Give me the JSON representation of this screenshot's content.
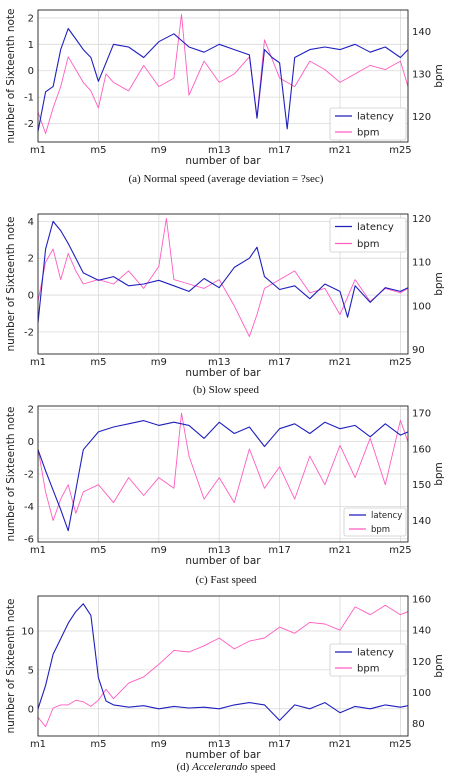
{
  "colors": {
    "latency": "#1f1fbf",
    "bpm": "#ff5cc0"
  },
  "chart_data": [
    {
      "type": "line",
      "caption": "(a)  Normal speed (average deviation = ?sec)",
      "xlabel": "number of bar",
      "ylabel": "number of Sixteenth note",
      "ylabel_right": "bpm",
      "xticks": [
        "m1",
        "m5",
        "m9",
        "m13",
        "m17",
        "m21",
        "m25"
      ],
      "ylim": [
        -2.7,
        2.3
      ],
      "yticks": [
        -2,
        -1,
        0,
        1,
        2
      ],
      "y2lim": [
        114,
        145
      ],
      "y2ticks": [
        120,
        130,
        140
      ],
      "legend": "lower-right",
      "series": [
        {
          "name": "latency",
          "axis": "left",
          "x": [
            1,
            1.5,
            2,
            2.5,
            3,
            3.5,
            4,
            4.5,
            5,
            5.5,
            6,
            7,
            8,
            9,
            10,
            11,
            12,
            13,
            14,
            15,
            15.5,
            16,
            16.5,
            17,
            17.5,
            18,
            19,
            20,
            21,
            22,
            23,
            24,
            25,
            25.5
          ],
          "y": [
            -2.3,
            -0.8,
            -0.6,
            0.8,
            1.6,
            1.2,
            0.8,
            0.5,
            -0.4,
            0.3,
            1.0,
            0.9,
            0.5,
            1.1,
            1.4,
            0.9,
            0.7,
            1.0,
            0.8,
            0.6,
            -1.8,
            0.8,
            0.5,
            0.3,
            -2.2,
            0.5,
            0.8,
            0.9,
            0.8,
            1.0,
            0.7,
            0.9,
            0.5,
            0.8
          ]
        },
        {
          "name": "bpm",
          "axis": "right",
          "x": [
            1,
            1.5,
            2,
            2.5,
            3,
            3.5,
            4,
            4.5,
            5,
            5.5,
            6,
            7,
            8,
            9,
            10,
            10.5,
            11,
            12,
            13,
            14,
            15,
            15.5,
            16,
            17,
            18,
            19,
            20,
            21,
            22,
            23,
            24,
            25,
            25.5
          ],
          "y": [
            121,
            116,
            122,
            127,
            134,
            131,
            128,
            126,
            122,
            130,
            128,
            126,
            132,
            127,
            129,
            144,
            125,
            133,
            128,
            130,
            134,
            120,
            138,
            129,
            127,
            133,
            131,
            128,
            130,
            132,
            131,
            133,
            127
          ]
        }
      ]
    },
    {
      "type": "line",
      "caption": "(b)  Slow speed",
      "xlabel": "number of bar",
      "ylabel": "number of Sixteenth note",
      "ylabel_right": "bpm",
      "xticks": [
        "m1",
        "m5",
        "m9",
        "m13",
        "m17",
        "m21",
        "m25"
      ],
      "ylim": [
        -3.2,
        4.4
      ],
      "yticks": [
        -2,
        0,
        2,
        4
      ],
      "y2lim": [
        89,
        121
      ],
      "y2ticks": [
        90,
        100,
        110,
        120
      ],
      "legend": "top-right",
      "series": [
        {
          "name": "latency",
          "axis": "left",
          "x": [
            1,
            1.5,
            2,
            2.5,
            3,
            3.5,
            4,
            5,
            6,
            7,
            8,
            9,
            10,
            11,
            12,
            13,
            14,
            15,
            15.5,
            16,
            17,
            18,
            19,
            20,
            21,
            21.5,
            22,
            23,
            24,
            25,
            25.5
          ],
          "y": [
            -1.5,
            2.5,
            4.0,
            3.5,
            2.8,
            2.0,
            1.2,
            0.8,
            1.0,
            0.5,
            0.6,
            0.8,
            0.5,
            0.2,
            0.9,
            0.4,
            1.5,
            2.0,
            2.6,
            1.0,
            0.3,
            0.5,
            -0.2,
            0.6,
            0.2,
            -1.2,
            0.5,
            -0.4,
            0.4,
            0.2,
            0.4
          ]
        },
        {
          "name": "bpm",
          "axis": "right",
          "x": [
            1,
            1.5,
            2,
            2.5,
            3,
            3.5,
            4,
            5,
            6,
            7,
            8,
            9,
            9.5,
            10,
            11,
            12,
            13,
            14,
            15,
            15.5,
            16,
            17,
            18,
            19,
            20,
            21,
            22,
            23,
            24,
            25,
            25.5
          ],
          "y": [
            101,
            110,
            113,
            106,
            112,
            108,
            105,
            106,
            105,
            108,
            104,
            109,
            120,
            106,
            105,
            104,
            106,
            100,
            93,
            98,
            104,
            106,
            108,
            103,
            104,
            98,
            106,
            101,
            104,
            103,
            104
          ]
        }
      ]
    },
    {
      "type": "line",
      "caption": "(c)  Fast speed",
      "xlabel": "number of bar",
      "ylabel": "number of Sixteenth note",
      "ylabel_right": "bpm",
      "xticks": [
        "m1",
        "m5",
        "m9",
        "m13",
        "m17",
        "m21",
        "m25"
      ],
      "ylim": [
        -6.2,
        2.2
      ],
      "yticks": [
        -6,
        -4,
        -2,
        0,
        2
      ],
      "y2lim": [
        134,
        172
      ],
      "y2ticks": [
        140,
        150,
        160,
        170
      ],
      "legend": "lower-right",
      "series": [
        {
          "name": "latency",
          "axis": "left",
          "x": [
            1,
            1.5,
            2,
            2.5,
            3,
            3.5,
            4,
            5,
            6,
            7,
            8,
            9,
            10,
            11,
            12,
            13,
            14,
            15,
            16,
            17,
            18,
            19,
            20,
            21,
            22,
            23,
            24,
            25,
            25.5
          ],
          "y": [
            -0.5,
            -1.8,
            -3.0,
            -4.2,
            -5.5,
            -3.0,
            -0.5,
            0.6,
            0.9,
            1.1,
            1.3,
            1.0,
            1.2,
            1.0,
            0.2,
            1.2,
            0.5,
            0.9,
            -0.3,
            0.8,
            1.1,
            0.5,
            1.2,
            0.8,
            1.0,
            0.3,
            1.1,
            0.4,
            0.6
          ]
        },
        {
          "name": "bpm",
          "axis": "right",
          "x": [
            1,
            1.5,
            2,
            2.5,
            3,
            3.5,
            4,
            5,
            6,
            7,
            8,
            9,
            10,
            10.5,
            11,
            12,
            13,
            14,
            15,
            16,
            17,
            18,
            19,
            20,
            21,
            22,
            23,
            24,
            25,
            25.5
          ],
          "y": [
            160,
            148,
            140,
            146,
            150,
            142,
            148,
            150,
            145,
            152,
            147,
            152,
            149,
            170,
            158,
            146,
            152,
            145,
            160,
            149,
            155,
            146,
            158,
            150,
            161,
            152,
            163,
            150,
            168,
            162
          ]
        }
      ]
    },
    {
      "type": "line",
      "caption_prefix": "(d)  ",
      "caption_em": "Accelerando",
      "caption_suffix": " speed",
      "xlabel": "number of bar",
      "ylabel": "number of Sixteenth note",
      "ylabel_right": "bpm",
      "xticks": [
        "m1",
        "m5",
        "m9",
        "m13",
        "m17",
        "m21",
        "m25"
      ],
      "ylim": [
        -3.5,
        14.5
      ],
      "yticks": [
        0,
        5,
        10
      ],
      "y2lim": [
        72,
        162
      ],
      "y2ticks": [
        80,
        100,
        120,
        140,
        160
      ],
      "legend": "center-right",
      "series": [
        {
          "name": "latency",
          "axis": "left",
          "x": [
            1,
            1.5,
            2,
            2.5,
            3,
            3.5,
            4,
            4.5,
            5,
            5.5,
            6,
            7,
            8,
            9,
            10,
            11,
            12,
            13,
            14,
            15,
            16,
            17,
            18,
            19,
            20,
            21,
            22,
            23,
            24,
            25,
            25.5
          ],
          "y": [
            0.0,
            3.0,
            7.0,
            9.0,
            11.0,
            12.5,
            13.5,
            12.0,
            4.0,
            1.0,
            0.5,
            0.2,
            0.4,
            0.0,
            0.3,
            0.1,
            0.2,
            0.0,
            0.5,
            0.8,
            0.5,
            -1.5,
            0.5,
            0.0,
            0.8,
            -0.5,
            0.3,
            0.0,
            0.5,
            0.2,
            0.4
          ]
        },
        {
          "name": "bpm",
          "axis": "right",
          "x": [
            1,
            1.5,
            2,
            2.5,
            3,
            3.5,
            4,
            4.5,
            5,
            5.5,
            6,
            7,
            8,
            9,
            10,
            11,
            12,
            13,
            14,
            15,
            16,
            17,
            18,
            19,
            20,
            21,
            22,
            23,
            24,
            25,
            25.5
          ],
          "y": [
            84,
            78,
            90,
            92,
            92,
            95,
            94,
            91,
            95,
            102,
            96,
            106,
            110,
            118,
            127,
            126,
            130,
            135,
            128,
            133,
            135,
            142,
            138,
            145,
            144,
            140,
            155,
            150,
            156,
            150,
            152
          ]
        }
      ]
    }
  ]
}
